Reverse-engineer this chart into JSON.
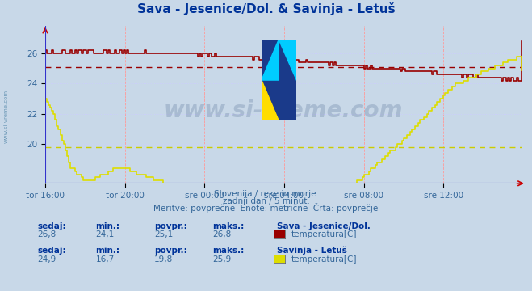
{
  "title": "Sava - Jesenice/Dol. & Savinja - Letuš",
  "title_color": "#003399",
  "background_color": "#c8d8e8",
  "plot_bg_color": "#c8d8e8",
  "grid_color_v": "#ff9999",
  "grid_color_h": "#ccccff",
  "axis_color": "#3333cc",
  "text_color": "#336699",
  "label_color": "#003399",
  "watermark": "www.si-vreme.com",
  "subtitle_lines": [
    "Slovenija / reke in morje.",
    "zadnji dan / 5 minut.",
    "Meritve: povprečne  Enote: metrične  Črta: povprečje"
  ],
  "xlim": [
    0,
    287
  ],
  "ylim": [
    17.4,
    27.8
  ],
  "yticks": [
    20,
    22,
    24,
    26
  ],
  "xtick_positions": [
    0,
    48,
    96,
    144,
    192,
    240
  ],
  "xtick_labels": [
    "tor 16:00",
    "tor 20:00",
    "sre 00:00",
    "sre 04:00",
    "sre 08:00",
    "sre 12:00"
  ],
  "avg_line1": 25.1,
  "avg_line2": 19.8,
  "avg_line1_color": "#990000",
  "avg_line2_color": "#cccc00",
  "series1_color": "#990000",
  "series2_color": "#dddd00",
  "legend1_label": "temperatura[C]",
  "legend2_label": "temperatura[C]",
  "station1_name": "Sava - Jesenice/Dol.",
  "station2_name": "Savinja - Letuš",
  "stats1": {
    "sedaj": "26,8",
    "min": "24,1",
    "povpr": "25,1",
    "maks": "26,8"
  },
  "stats2": {
    "sedaj": "24,9",
    "min": "16,7",
    "povpr": "19,8",
    "maks": "25,9"
  }
}
